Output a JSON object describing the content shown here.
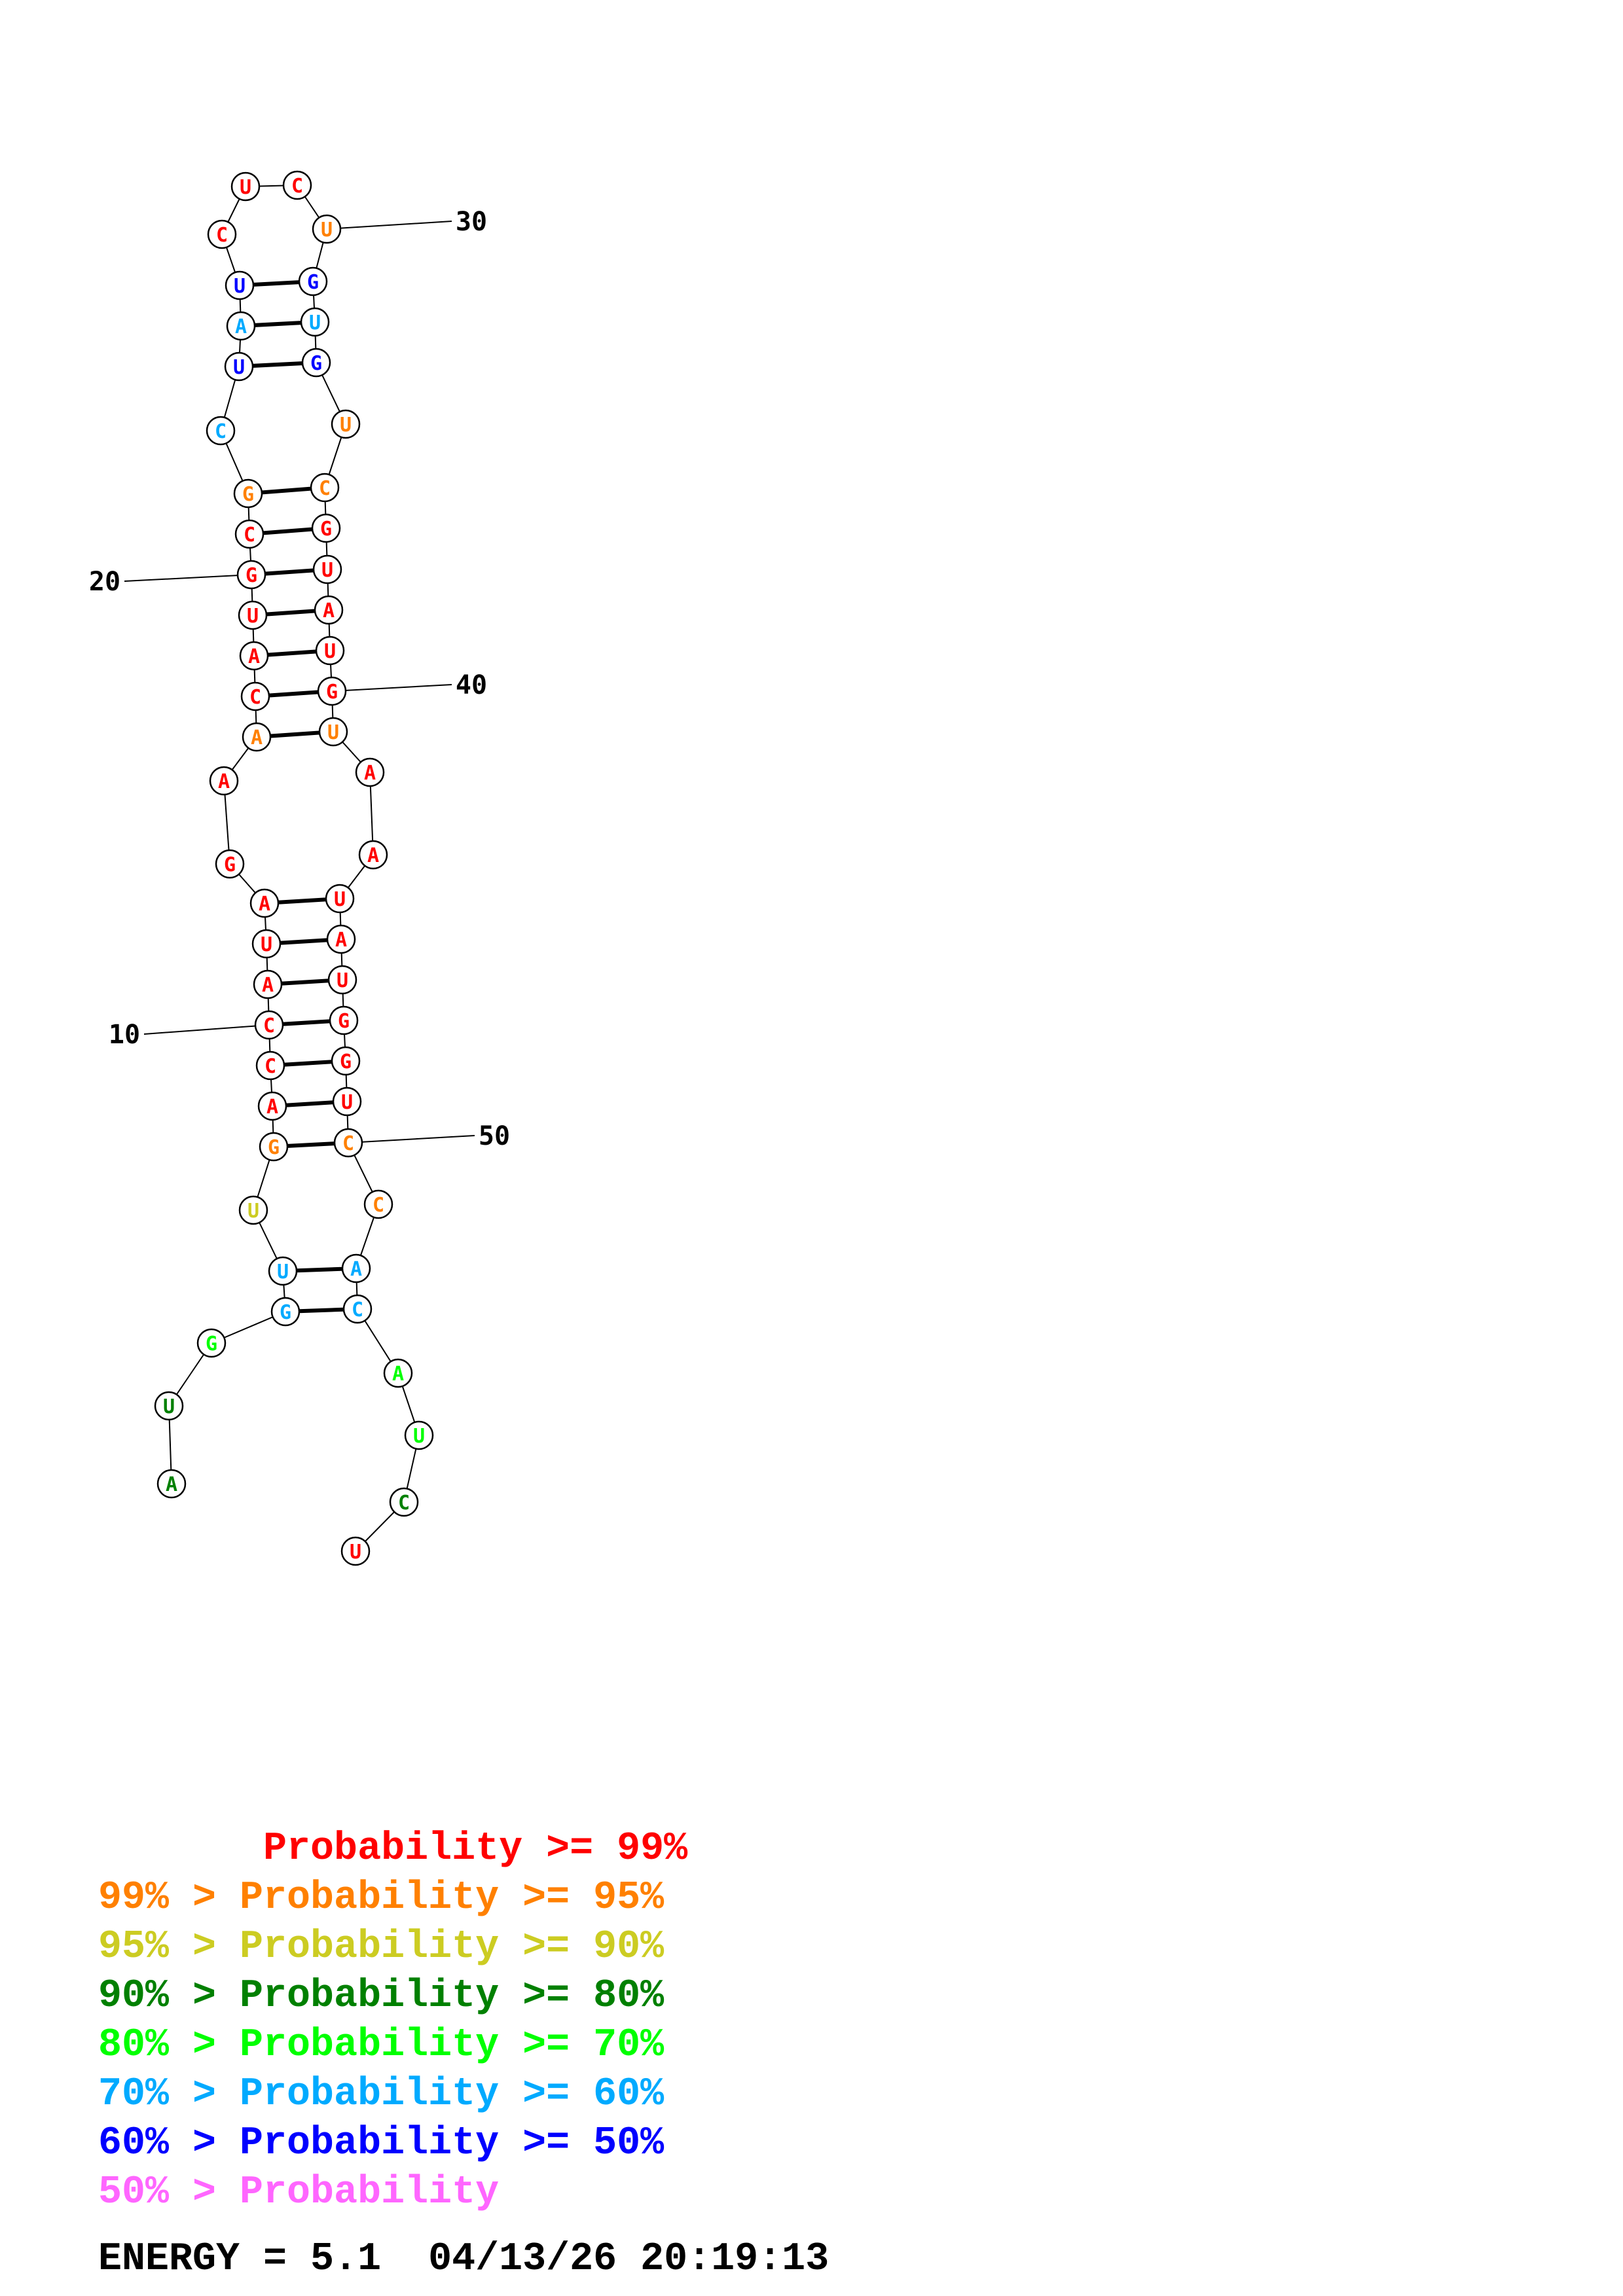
{
  "legend": [
    {
      "text": "       Probability >= 99%",
      "color": "#ff0000"
    },
    {
      "text": "99% > Probability >= 95%",
      "color": "#ff8000"
    },
    {
      "text": "95% > Probability >= 90%",
      "color": "#cccc22"
    },
    {
      "text": "90% > Probability >= 80%",
      "color": "#008000"
    },
    {
      "text": "80% > Probability >= 70%",
      "color": "#00ff00"
    },
    {
      "text": "70% > Probability >= 60%",
      "color": "#00aaff"
    },
    {
      "text": "60% > Probability >= 50%",
      "color": "#0000ff"
    },
    {
      "text": "50% > Probability",
      "color": "#ff66ff"
    }
  ],
  "footer": {
    "energy": "ENERGY = 5.1",
    "timestamp": "04/13/26 20:19:13"
  },
  "structure": {
    "nucleotides": [
      {
        "n": 1,
        "base": "A",
        "color": "#008000"
      },
      {
        "n": 2,
        "base": "U",
        "color": "#008000"
      },
      {
        "n": 3,
        "base": "G",
        "color": "#00ff00"
      },
      {
        "n": 4,
        "base": "G",
        "color": "#00aaff"
      },
      {
        "n": 5,
        "base": "U",
        "color": "#00aaff"
      },
      {
        "n": 6,
        "base": "U",
        "color": "#cccc22"
      },
      {
        "n": 7,
        "base": "G",
        "color": "#ff8000"
      },
      {
        "n": 8,
        "base": "A",
        "color": "#ff0000"
      },
      {
        "n": 9,
        "base": "C",
        "color": "#ff0000"
      },
      {
        "n": 10,
        "base": "C",
        "color": "#ff0000"
      },
      {
        "n": 11,
        "base": "A",
        "color": "#ff0000"
      },
      {
        "n": 12,
        "base": "U",
        "color": "#ff0000"
      },
      {
        "n": 13,
        "base": "A",
        "color": "#ff0000"
      },
      {
        "n": 14,
        "base": "G",
        "color": "#ff0000"
      },
      {
        "n": 15,
        "base": "A",
        "color": "#ff0000"
      },
      {
        "n": 16,
        "base": "A",
        "color": "#ff8000"
      },
      {
        "n": 17,
        "base": "C",
        "color": "#ff0000"
      },
      {
        "n": 18,
        "base": "A",
        "color": "#ff0000"
      },
      {
        "n": 19,
        "base": "U",
        "color": "#ff0000"
      },
      {
        "n": 20,
        "base": "G",
        "color": "#ff0000"
      },
      {
        "n": 21,
        "base": "C",
        "color": "#ff0000"
      },
      {
        "n": 22,
        "base": "G",
        "color": "#ff8000"
      },
      {
        "n": 23,
        "base": "C",
        "color": "#00aaff"
      },
      {
        "n": 24,
        "base": "U",
        "color": "#0000ff"
      },
      {
        "n": 25,
        "base": "A",
        "color": "#00aaff"
      },
      {
        "n": 26,
        "base": "U",
        "color": "#0000ff"
      },
      {
        "n": 27,
        "base": "C",
        "color": "#ff0000"
      },
      {
        "n": 28,
        "base": "U",
        "color": "#ff0000"
      },
      {
        "n": 29,
        "base": "C",
        "color": "#ff0000"
      },
      {
        "n": 30,
        "base": "U",
        "color": "#ff8000"
      },
      {
        "n": 31,
        "base": "G",
        "color": "#0000ff"
      },
      {
        "n": 32,
        "base": "U",
        "color": "#00aaff"
      },
      {
        "n": 33,
        "base": "G",
        "color": "#0000ff"
      },
      {
        "n": 34,
        "base": "U",
        "color": "#ff8000"
      },
      {
        "n": 35,
        "base": "C",
        "color": "#ff8000"
      },
      {
        "n": 36,
        "base": "G",
        "color": "#ff0000"
      },
      {
        "n": 37,
        "base": "U",
        "color": "#ff0000"
      },
      {
        "n": 38,
        "base": "A",
        "color": "#ff0000"
      },
      {
        "n": 39,
        "base": "U",
        "color": "#ff0000"
      },
      {
        "n": 40,
        "base": "G",
        "color": "#ff0000"
      },
      {
        "n": 41,
        "base": "U",
        "color": "#ff8000"
      },
      {
        "n": 42,
        "base": "A",
        "color": "#ff0000"
      },
      {
        "n": 43,
        "base": "A",
        "color": "#ff0000"
      },
      {
        "n": 44,
        "base": "U",
        "color": "#ff0000"
      },
      {
        "n": 45,
        "base": "A",
        "color": "#ff0000"
      },
      {
        "n": 46,
        "base": "U",
        "color": "#ff0000"
      },
      {
        "n": 47,
        "base": "G",
        "color": "#ff0000"
      },
      {
        "n": 48,
        "base": "G",
        "color": "#ff0000"
      },
      {
        "n": 49,
        "base": "U",
        "color": "#ff0000"
      },
      {
        "n": 50,
        "base": "C",
        "color": "#ff8000"
      },
      {
        "n": 51,
        "base": "C",
        "color": "#ff8000"
      },
      {
        "n": 52,
        "base": "A",
        "color": "#00aaff"
      },
      {
        "n": 53,
        "base": "C",
        "color": "#00aaff"
      },
      {
        "n": 54,
        "base": "A",
        "color": "#00ff00"
      },
      {
        "n": 55,
        "base": "U",
        "color": "#00ff00"
      },
      {
        "n": 56,
        "base": "C",
        "color": "#008000"
      },
      {
        "n": 57,
        "base": "U",
        "color": "#ff0000"
      }
    ],
    "pairs": [
      [
        4,
        53
      ],
      [
        5,
        52
      ],
      [
        7,
        50
      ],
      [
        8,
        49
      ],
      [
        9,
        48
      ],
      [
        10,
        47
      ],
      [
        11,
        46
      ],
      [
        12,
        45
      ],
      [
        13,
        44
      ],
      [
        16,
        41
      ],
      [
        17,
        40
      ],
      [
        18,
        39
      ],
      [
        19,
        38
      ],
      [
        20,
        37
      ],
      [
        21,
        36
      ],
      [
        22,
        35
      ],
      [
        24,
        33
      ],
      [
        25,
        32
      ],
      [
        26,
        31
      ]
    ],
    "index_labels": [
      "10",
      "20",
      "30",
      "40",
      "50"
    ]
  }
}
